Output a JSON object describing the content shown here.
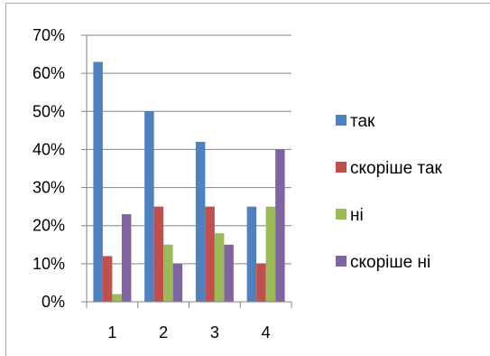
{
  "chart_data": {
    "type": "bar",
    "categories": [
      "1",
      "2",
      "3",
      "4"
    ],
    "series": [
      {
        "name": "так",
        "color": "#4f81bd",
        "values": [
          63,
          50,
          42,
          25
        ]
      },
      {
        "name": "скоріше так",
        "color": "#c0504d",
        "values": [
          12,
          25,
          25,
          10
        ]
      },
      {
        "name": "ні",
        "color": "#9bbb59",
        "values": [
          2,
          15,
          18,
          25
        ]
      },
      {
        "name": "скоріше ні",
        "color": "#8064a2",
        "values": [
          23,
          10,
          15,
          40
        ]
      }
    ],
    "y_ticks": [
      "0%",
      "10%",
      "20%",
      "30%",
      "40%",
      "50%",
      "60%",
      "70%"
    ],
    "ylim": [
      0,
      70
    ],
    "grid": true,
    "legend_position": "right",
    "title": "",
    "xlabel": "",
    "ylabel": ""
  }
}
